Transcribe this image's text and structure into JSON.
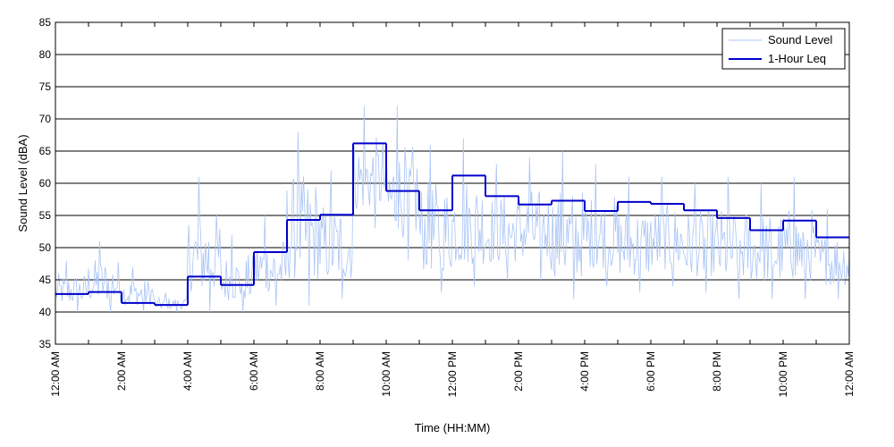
{
  "chart_data": {
    "type": "line",
    "title": "",
    "xlabel": "Time (HH:MM)",
    "ylabel": "Sound Level (dBA)",
    "ylim": [
      35,
      85
    ],
    "y_ticks": [
      35,
      40,
      45,
      50,
      55,
      60,
      65,
      70,
      75,
      80,
      85
    ],
    "xlim_hours": [
      0,
      24
    ],
    "x_tick_labels": [
      "12:00 AM",
      "2:00 AM",
      "4:00 AM",
      "6:00 AM",
      "8:00 AM",
      "10:00 AM",
      "12:00 PM",
      "2:00 PM",
      "4:00 PM",
      "6:00 PM",
      "8:00 PM",
      "10:00 PM",
      "12:00 AM"
    ],
    "grid": "horizontal",
    "legend_position": "top-right",
    "series": [
      {
        "name": "Sound Level",
        "color": "#a9c4f5",
        "style": "thin-line",
        "hourly_ranges": [
          [
            40,
            48
          ],
          [
            40,
            51
          ],
          [
            40,
            47
          ],
          [
            40,
            43
          ],
          [
            40,
            61
          ],
          [
            40,
            52
          ],
          [
            41,
            55
          ],
          [
            41,
            68
          ],
          [
            42,
            62
          ],
          [
            53,
            72
          ],
          [
            48,
            72
          ],
          [
            43,
            66
          ],
          [
            44,
            67
          ],
          [
            45,
            63
          ],
          [
            45,
            64
          ],
          [
            42,
            65
          ],
          [
            44,
            63
          ],
          [
            43,
            61
          ],
          [
            44,
            61
          ],
          [
            43,
            60
          ],
          [
            42,
            61
          ],
          [
            42,
            60
          ],
          [
            42,
            61
          ],
          [
            42,
            56
          ]
        ]
      },
      {
        "name": "1-Hour Leq",
        "color": "#0000cc",
        "style": "step",
        "values": [
          42.8,
          43.1,
          41.4,
          41.1,
          45.5,
          44.2,
          49.3,
          54.3,
          55.1,
          66.2,
          58.8,
          55.8,
          61.2,
          58.0,
          56.7,
          57.3,
          55.7,
          57.1,
          56.8,
          55.8,
          54.6,
          52.7,
          54.2,
          51.6
        ]
      }
    ]
  }
}
